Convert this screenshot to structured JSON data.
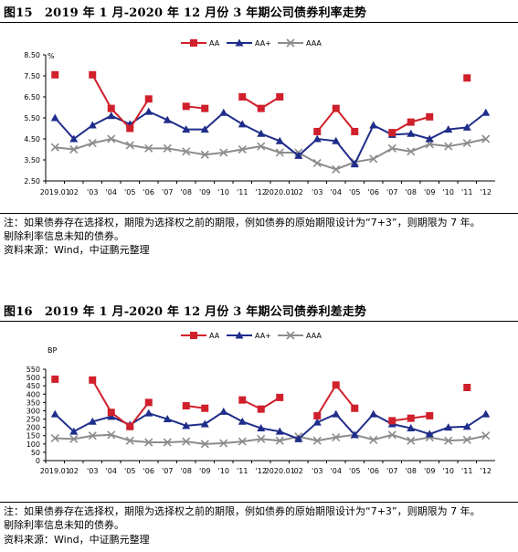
{
  "figure15": {
    "title": "图15　2019 年 1 月-2020 年 12 月份 3 年期公司债券利率走势"
  },
  "figure16": {
    "title": "图16　2019 年 1 月-2020 年 12 月份 3 年期公司债券利差走势"
  },
  "notes": {
    "line1": "注：如果债券存在选择权，期限为选择权之前的期限，例如债券的原始期限设计为“7+3”，则期限为 7 年。",
    "line2": "剔除利率信息未知的债券。",
    "source": "资料来源：Wind，中证鹏元整理"
  },
  "colors": {
    "AA": "#D0202B",
    "AA+": "#1F2D8A",
    "AAA": "#8C8C8C"
  },
  "chart_data": [
    {
      "type": "line",
      "unit_label": "%",
      "categories": [
        "2019.01",
        "02",
        "03",
        "04",
        "05",
        "06",
        "07",
        "08",
        "09",
        "10",
        "11",
        "12",
        "2020.01",
        "02",
        "03",
        "04",
        "05",
        "06",
        "07",
        "08",
        "09",
        "10",
        "11",
        "12"
      ],
      "category_labels": [
        "2019.01",
        "02",
        "'03",
        "'04",
        "'05",
        "'06",
        "'07",
        "'08",
        "'09",
        "'10",
        "'11",
        "'12",
        "2020.01",
        "02",
        "'03",
        "'04",
        "'05",
        "'06",
        "'07",
        "'08",
        "'09",
        "'10",
        "'11",
        "'12"
      ],
      "yticks": [
        "8.50",
        "7.50",
        "6.50",
        "5.50",
        "4.50",
        "3.50",
        "2.50"
      ],
      "ylim": [
        2.5,
        8.5
      ],
      "legend_position": "top-center",
      "series": [
        {
          "name": "AA",
          "marker": "square",
          "values": [
            7.55,
            null,
            7.55,
            5.95,
            5.0,
            6.4,
            null,
            6.05,
            5.95,
            null,
            6.5,
            5.95,
            6.5,
            null,
            4.85,
            5.95,
            4.85,
            null,
            4.8,
            5.3,
            5.55,
            null,
            7.4,
            null
          ]
        },
        {
          "name": "AA+",
          "marker": "triangle",
          "values": [
            5.5,
            4.5,
            5.15,
            5.6,
            5.2,
            5.8,
            5.4,
            4.95,
            4.95,
            5.75,
            5.2,
            4.75,
            4.4,
            3.7,
            4.5,
            4.4,
            3.3,
            5.15,
            4.7,
            4.75,
            4.5,
            4.95,
            5.05,
            5.75
          ]
        },
        {
          "name": "AAA",
          "marker": "x",
          "values": [
            4.1,
            4.0,
            4.3,
            4.5,
            4.2,
            4.05,
            4.05,
            3.9,
            3.75,
            3.85,
            4.0,
            4.15,
            3.85,
            3.85,
            3.35,
            3.05,
            3.4,
            3.55,
            4.05,
            3.9,
            4.25,
            4.15,
            4.3,
            4.5
          ]
        }
      ]
    },
    {
      "type": "line",
      "unit_label": "BP",
      "categories": [
        "2019.01",
        "02",
        "03",
        "04",
        "05",
        "06",
        "07",
        "08",
        "09",
        "10",
        "11",
        "12",
        "2020.01",
        "02",
        "03",
        "04",
        "05",
        "06",
        "07",
        "08",
        "09",
        "10",
        "11",
        "12"
      ],
      "category_labels": [
        "2019.01",
        "02",
        "'03",
        "'04",
        "'05",
        "'06",
        "'07",
        "'08",
        "'09",
        "'10",
        "'11",
        "'12",
        "2020.01",
        "02",
        "'03",
        "'04",
        "'05",
        "'06",
        "'07",
        "'08",
        "'09",
        "'10",
        "'11",
        "'12"
      ],
      "yticks": [
        "550",
        "500",
        "450",
        "400",
        "350",
        "300",
        "250",
        "200",
        "150",
        "100",
        "50",
        "0"
      ],
      "ylim": [
        0,
        550
      ],
      "legend_position": "top-center",
      "series": [
        {
          "name": "AA",
          "marker": "square",
          "values": [
            490,
            null,
            485,
            290,
            205,
            350,
            null,
            330,
            315,
            null,
            365,
            310,
            380,
            null,
            270,
            455,
            315,
            null,
            240,
            255,
            270,
            null,
            440,
            null
          ]
        },
        {
          "name": "AA+",
          "marker": "triangle",
          "values": [
            280,
            175,
            235,
            265,
            215,
            285,
            250,
            210,
            220,
            295,
            235,
            195,
            175,
            130,
            230,
            280,
            155,
            280,
            220,
            195,
            160,
            200,
            205,
            280
          ]
        },
        {
          "name": "AAA",
          "marker": "x",
          "values": [
            135,
            130,
            150,
            155,
            120,
            110,
            110,
            115,
            100,
            105,
            115,
            130,
            120,
            145,
            120,
            140,
            155,
            125,
            155,
            120,
            140,
            120,
            125,
            150
          ]
        }
      ]
    }
  ]
}
